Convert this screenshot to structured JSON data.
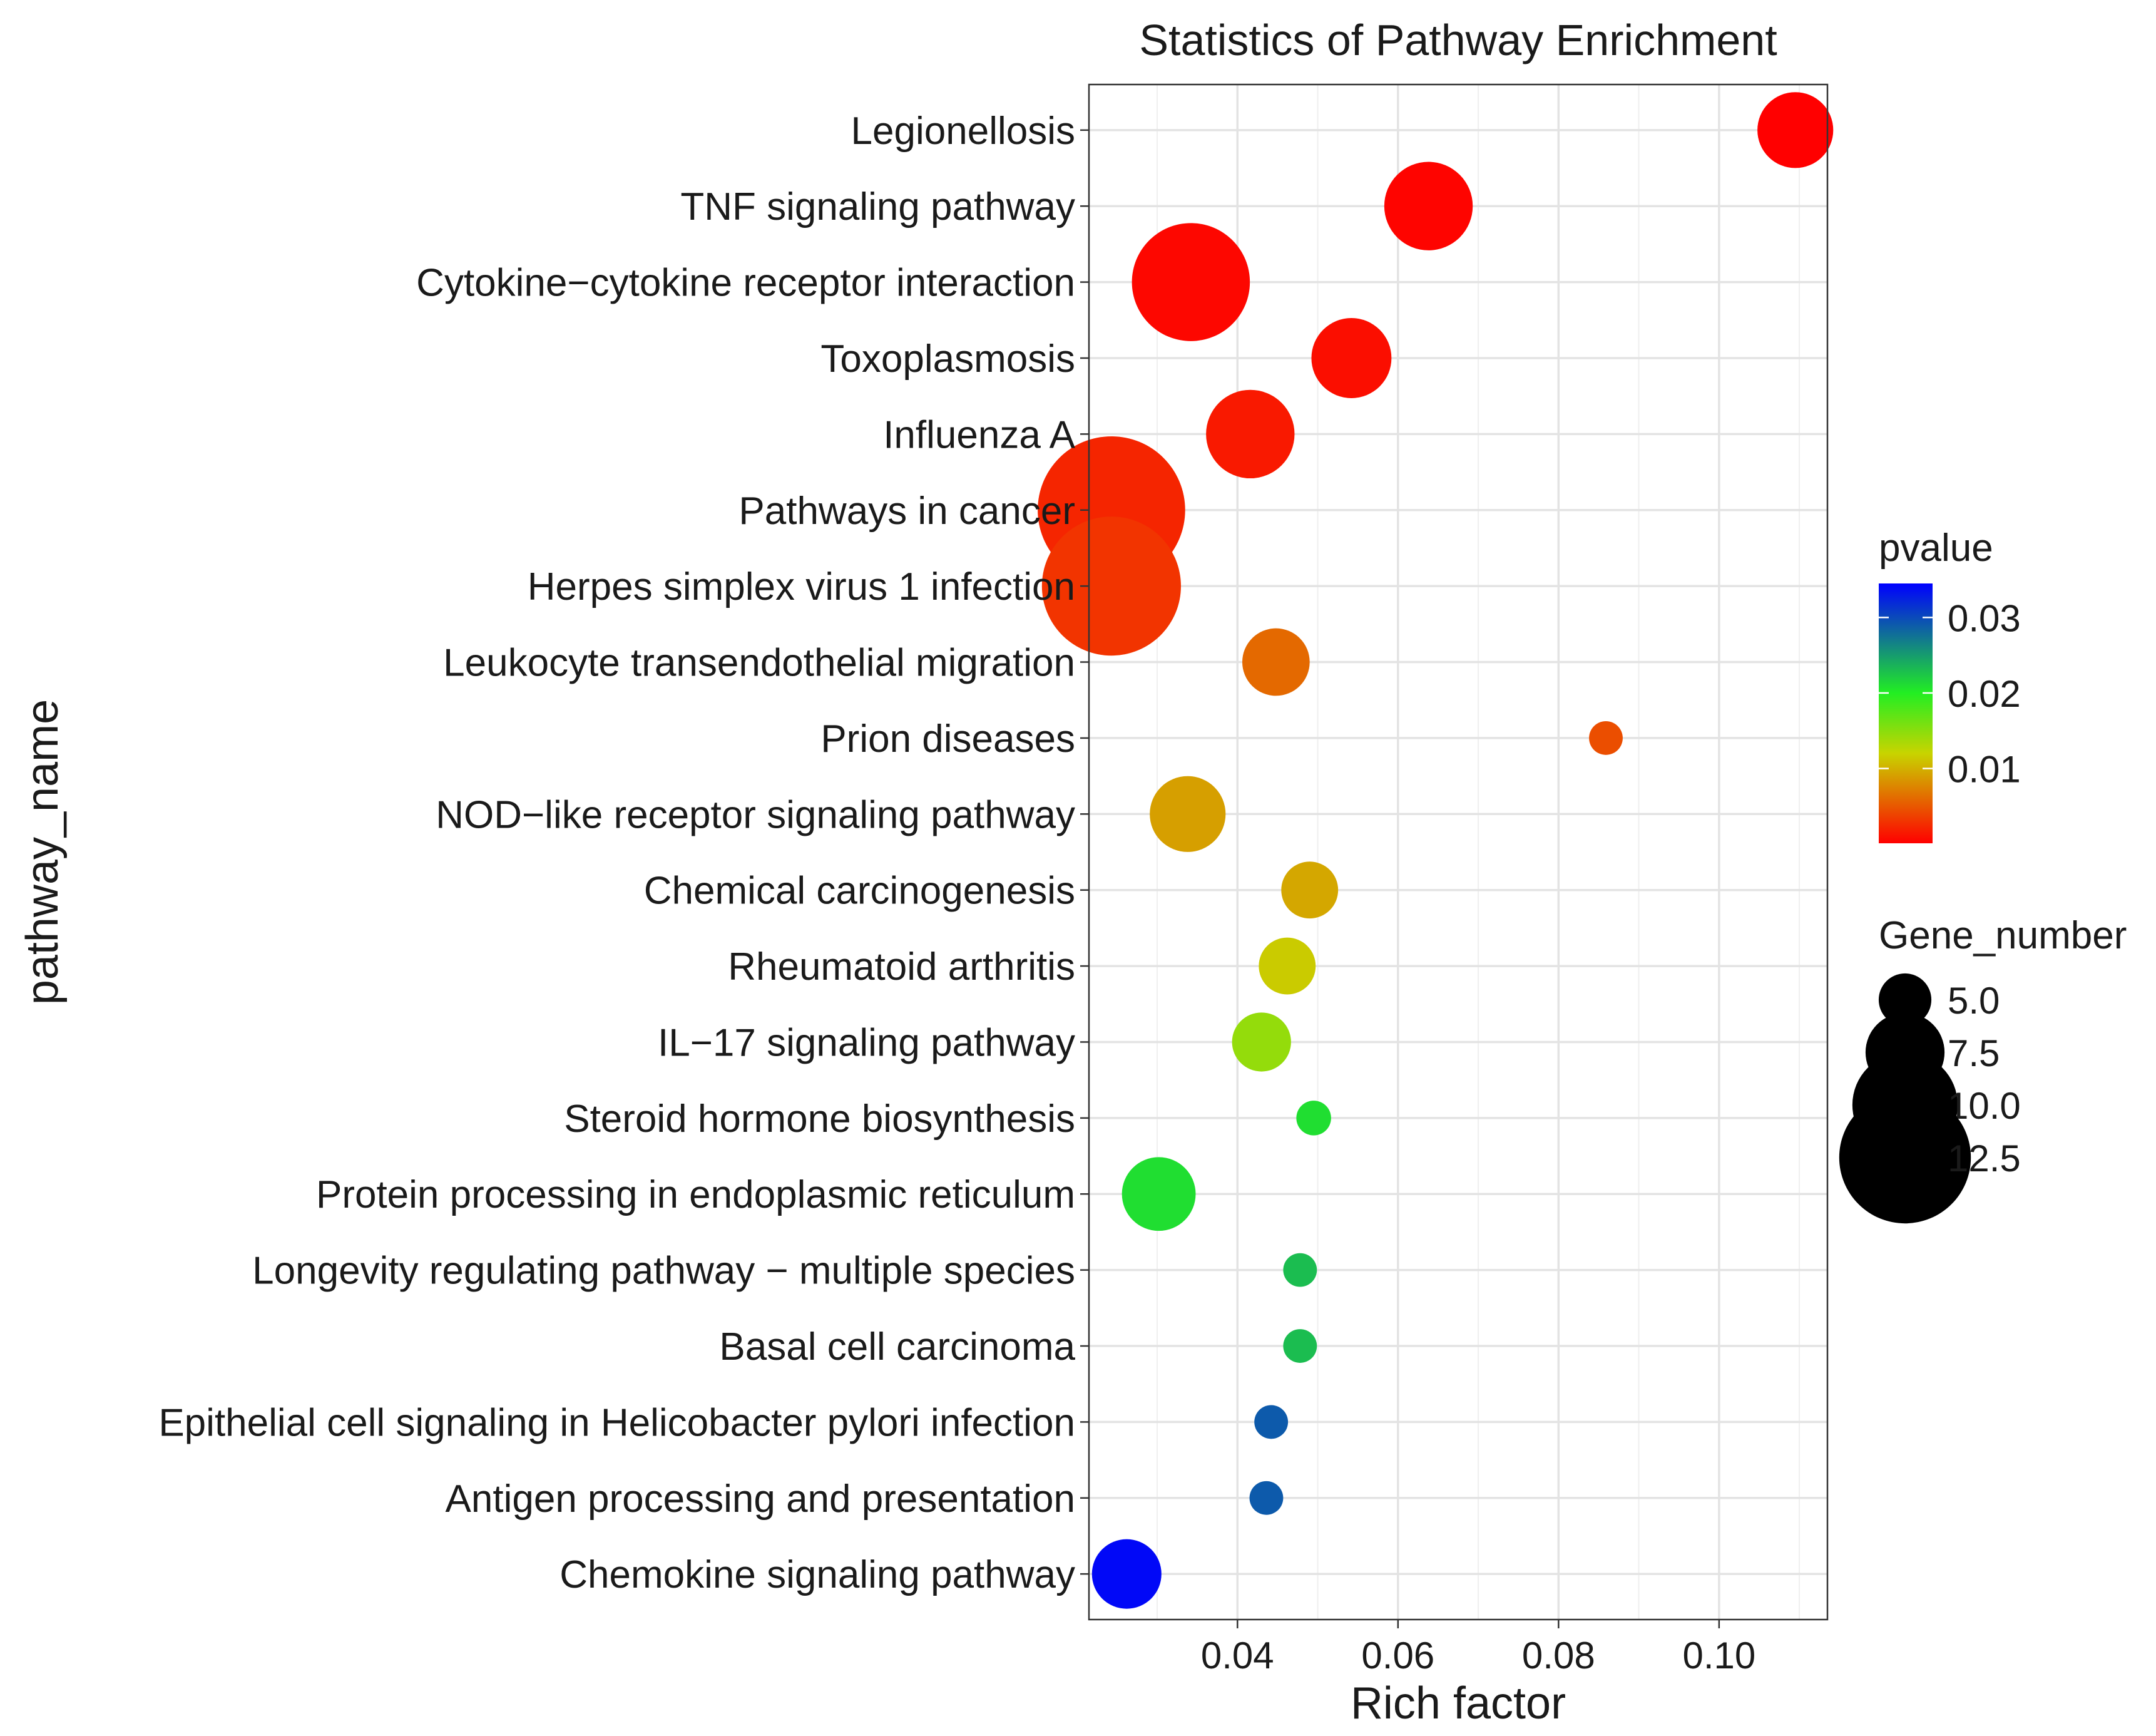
{
  "chart_data": {
    "type": "scatter",
    "title": "Statistics of Pathway Enrichment",
    "xlabel": "Rich factor",
    "ylabel": "pathway_name",
    "xlim": [
      0.0215,
      0.1135
    ],
    "x_ticks": [
      0.04,
      0.06,
      0.08,
      0.1
    ],
    "x_tick_labels": [
      "0.04",
      "0.06",
      "0.08",
      "0.10"
    ],
    "grid": true,
    "points": [
      {
        "pathway": "Legionellosis",
        "rich_factor": 0.1095,
        "pvalue": 0.0001,
        "gene_number": 7.2
      },
      {
        "pathway": "TNF signaling pathway",
        "rich_factor": 0.0638,
        "pvalue": 0.0003,
        "gene_number": 8.4
      },
      {
        "pathway": "Cytokine−cytokine receptor interaction",
        "rich_factor": 0.0342,
        "pvalue": 0.0005,
        "gene_number": 11.2
      },
      {
        "pathway": "Toxoplasmosis",
        "rich_factor": 0.0542,
        "pvalue": 0.0009,
        "gene_number": 7.6
      },
      {
        "pathway": "Influenza A",
        "rich_factor": 0.0416,
        "pvalue": 0.0015,
        "gene_number": 8.4
      },
      {
        "pathway": "Pathways in cancer",
        "rich_factor": 0.0243,
        "pvalue": 0.0022,
        "gene_number": 14.0
      },
      {
        "pathway": "Herpes simplex virus 1 infection",
        "rich_factor": 0.0243,
        "pvalue": 0.003,
        "gene_number": 13.2
      },
      {
        "pathway": "Leukocyte transendothelial migration",
        "rich_factor": 0.0448,
        "pvalue": 0.006,
        "gene_number": 6.4
      },
      {
        "pathway": "Prion diseases",
        "rich_factor": 0.0859,
        "pvalue": 0.0045,
        "gene_number": 3.2
      },
      {
        "pathway": "NOD−like receptor signaling pathway",
        "rich_factor": 0.0338,
        "pvalue": 0.009,
        "gene_number": 7.2
      },
      {
        "pathway": "Chemical carcinogenesis",
        "rich_factor": 0.049,
        "pvalue": 0.0095,
        "gene_number": 5.4
      },
      {
        "pathway": "Rheumatoid arthritis",
        "rich_factor": 0.0462,
        "pvalue": 0.0115,
        "gene_number": 5.4
      },
      {
        "pathway": "IL−17 signaling pathway",
        "rich_factor": 0.043,
        "pvalue": 0.0145,
        "gene_number": 5.6
      },
      {
        "pathway": "Steroid hormone biosynthesis",
        "rich_factor": 0.0495,
        "pvalue": 0.021,
        "gene_number": 3.3
      },
      {
        "pathway": "Protein processing in endoplasmic reticulum",
        "rich_factor": 0.0302,
        "pvalue": 0.021,
        "gene_number": 7.0
      },
      {
        "pathway": "Longevity regulating pathway − multiple species",
        "rich_factor": 0.0478,
        "pvalue": 0.023,
        "gene_number": 3.2
      },
      {
        "pathway": "Basal cell carcinoma",
        "rich_factor": 0.0478,
        "pvalue": 0.023,
        "gene_number": 3.2
      },
      {
        "pathway": "Epithelial cell signaling in Helicobacter pylori infection",
        "rich_factor": 0.0442,
        "pvalue": 0.029,
        "gene_number": 3.2
      },
      {
        "pathway": "Antigen processing and presentation",
        "rich_factor": 0.0436,
        "pvalue": 0.029,
        "gene_number": 3.2
      },
      {
        "pathway": "Chemokine signaling pathway",
        "rich_factor": 0.0262,
        "pvalue": 0.034,
        "gene_number": 6.6
      }
    ],
    "color_legend": {
      "title": "pvalue",
      "range": [
        0.0001,
        0.0345
      ],
      "ticks": [
        0.01,
        0.02,
        0.03
      ],
      "tick_labels": [
        "0.01",
        "0.02",
        "0.03"
      ],
      "stops": [
        {
          "value": 0.0001,
          "color": "#ff0000"
        },
        {
          "value": 0.012,
          "color": "#c8d400"
        },
        {
          "value": 0.02,
          "color": "#22ee22"
        },
        {
          "value": 0.0345,
          "color": "#0000ff"
        }
      ],
      "position": "right"
    },
    "size_legend": {
      "title": "Gene_number",
      "values": [
        5.0,
        7.5,
        10.0,
        12.5
      ],
      "labels": [
        "5.0",
        "7.5",
        "10.0",
        "12.5"
      ],
      "size_range": [
        3,
        14
      ],
      "position": "right"
    }
  }
}
